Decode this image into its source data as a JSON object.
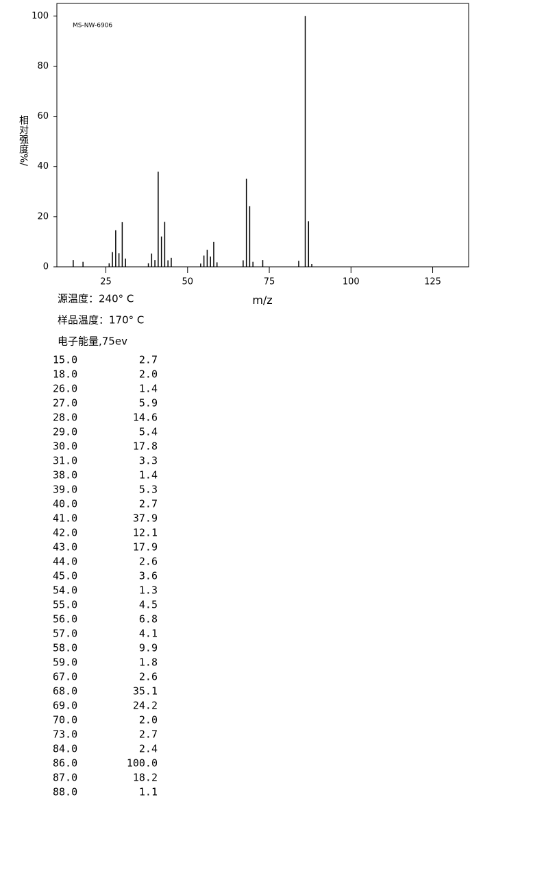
{
  "chart_data": {
    "type": "bar",
    "annotation": "MS-NW-6906",
    "y_label": "相对强度%/",
    "x_label": "m/z",
    "x": [
      15,
      18,
      26,
      27,
      28,
      29,
      30,
      31,
      38,
      39,
      40,
      41,
      42,
      43,
      44,
      45,
      54,
      55,
      56,
      57,
      58,
      59,
      67,
      68,
      69,
      70,
      73,
      84,
      86,
      87,
      88
    ],
    "values": [
      2.7,
      2.0,
      1.4,
      5.9,
      14.6,
      5.4,
      17.8,
      3.3,
      1.4,
      5.3,
      2.7,
      37.9,
      12.1,
      17.9,
      2.6,
      3.6,
      1.3,
      4.5,
      6.8,
      4.1,
      9.9,
      1.8,
      2.6,
      35.1,
      24.2,
      2.0,
      2.7,
      2.4,
      100.0,
      18.2,
      1.1
    ],
    "color": "#000000",
    "xlim": [
      10,
      136
    ],
    "ylim": [
      0,
      105
    ],
    "xticks": [
      25,
      50,
      75,
      100,
      125
    ],
    "yticks": [
      0,
      20,
      40,
      60,
      80,
      100
    ]
  },
  "conditions": [
    "源温度：240° C",
    "样品温度：170° C",
    "电子能量,75ev"
  ],
  "table": {
    "rows": [
      [
        "15.0",
        "2.7"
      ],
      [
        "18.0",
        "2.0"
      ],
      [
        "26.0",
        "1.4"
      ],
      [
        "27.0",
        "5.9"
      ],
      [
        "28.0",
        "14.6"
      ],
      [
        "29.0",
        "5.4"
      ],
      [
        "30.0",
        "17.8"
      ],
      [
        "31.0",
        "3.3"
      ],
      [
        "38.0",
        "1.4"
      ],
      [
        "39.0",
        "5.3"
      ],
      [
        "40.0",
        "2.7"
      ],
      [
        "41.0",
        "37.9"
      ],
      [
        "42.0",
        "12.1"
      ],
      [
        "43.0",
        "17.9"
      ],
      [
        "44.0",
        "2.6"
      ],
      [
        "45.0",
        "3.6"
      ],
      [
        "54.0",
        "1.3"
      ],
      [
        "55.0",
        "4.5"
      ],
      [
        "56.0",
        "6.8"
      ],
      [
        "57.0",
        "4.1"
      ],
      [
        "58.0",
        "9.9"
      ],
      [
        "59.0",
        "1.8"
      ],
      [
        "67.0",
        "2.6"
      ],
      [
        "68.0",
        "35.1"
      ],
      [
        "69.0",
        "24.2"
      ],
      [
        "70.0",
        "2.0"
      ],
      [
        "73.0",
        "2.7"
      ],
      [
        "84.0",
        "2.4"
      ],
      [
        "86.0",
        "100.0"
      ],
      [
        "87.0",
        "18.2"
      ],
      [
        "88.0",
        "1.1"
      ]
    ]
  }
}
